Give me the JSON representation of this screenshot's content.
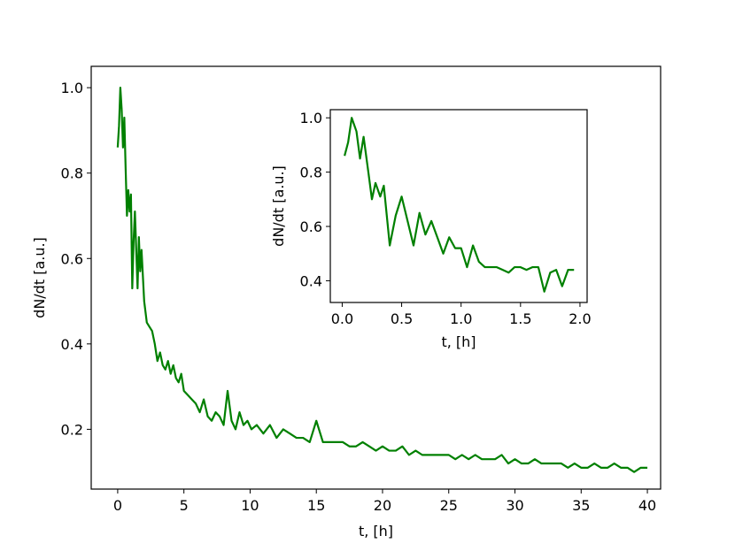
{
  "chart_data": [
    {
      "type": "line",
      "xlabel": "t, [h]",
      "ylabel": "dN/dt [a.u.]",
      "xlim": [
        -2,
        41
      ],
      "ylim": [
        0.06,
        1.05
      ],
      "xticks": [
        0,
        5,
        10,
        15,
        20,
        25,
        30,
        35,
        40
      ],
      "xtick_labels": [
        "0",
        "5",
        "10",
        "15",
        "20",
        "25",
        "30",
        "35",
        "40"
      ],
      "yticks": [
        0.2,
        0.4,
        0.6,
        0.8,
        1.0
      ],
      "ytick_labels": [
        "0.2",
        "0.4",
        "0.6",
        "0.8",
        "1.0"
      ],
      "grid": false,
      "color": "#008000",
      "series": [
        {
          "x": [
            0.0,
            0.1,
            0.2,
            0.3,
            0.4,
            0.5,
            0.6,
            0.7,
            0.8,
            0.9,
            1.0,
            1.1,
            1.2,
            1.3,
            1.4,
            1.5,
            1.6,
            1.7,
            1.8,
            1.9,
            2.0,
            2.2,
            2.4,
            2.6,
            2.8,
            3.0,
            3.2,
            3.4,
            3.6,
            3.8,
            4.0,
            4.2,
            4.4,
            4.6,
            4.8,
            5.0,
            5.3,
            5.6,
            5.9,
            6.2,
            6.5,
            6.8,
            7.1,
            7.4,
            7.7,
            8.0,
            8.3,
            8.6,
            8.9,
            9.2,
            9.5,
            9.8,
            10.1,
            10.5,
            11.0,
            11.5,
            12.0,
            12.5,
            13.0,
            13.5,
            14.0,
            14.5,
            15.0,
            15.5,
            16.0,
            16.5,
            17.0,
            17.5,
            18.0,
            18.5,
            19.0,
            19.5,
            20.0,
            20.5,
            21.0,
            21.5,
            22.0,
            22.5,
            23.0,
            23.5,
            24.0,
            24.5,
            25.0,
            25.5,
            26.0,
            26.5,
            27.0,
            27.5,
            28.0,
            28.5,
            29.0,
            29.5,
            30.0,
            30.5,
            31.0,
            31.5,
            32.0,
            32.5,
            33.0,
            33.5,
            34.0,
            34.5,
            35.0,
            35.5,
            36.0,
            36.5,
            37.0,
            37.5,
            38.0,
            38.5,
            39.0,
            39.5,
            40.0
          ],
          "values": [
            0.86,
            0.91,
            1.0,
            0.95,
            0.86,
            0.93,
            0.81,
            0.7,
            0.76,
            0.71,
            0.75,
            0.53,
            0.64,
            0.71,
            0.62,
            0.53,
            0.65,
            0.57,
            0.62,
            0.56,
            0.5,
            0.45,
            0.44,
            0.43,
            0.4,
            0.36,
            0.38,
            0.35,
            0.34,
            0.36,
            0.33,
            0.35,
            0.32,
            0.31,
            0.33,
            0.29,
            0.28,
            0.27,
            0.26,
            0.24,
            0.27,
            0.23,
            0.22,
            0.24,
            0.23,
            0.21,
            0.29,
            0.22,
            0.2,
            0.24,
            0.21,
            0.22,
            0.2,
            0.21,
            0.19,
            0.21,
            0.18,
            0.2,
            0.19,
            0.18,
            0.18,
            0.17,
            0.22,
            0.17,
            0.17,
            0.17,
            0.17,
            0.16,
            0.16,
            0.17,
            0.16,
            0.15,
            0.16,
            0.15,
            0.15,
            0.16,
            0.14,
            0.15,
            0.14,
            0.14,
            0.14,
            0.14,
            0.14,
            0.13,
            0.14,
            0.13,
            0.14,
            0.13,
            0.13,
            0.13,
            0.14,
            0.12,
            0.13,
            0.12,
            0.12,
            0.13,
            0.12,
            0.12,
            0.12,
            0.12,
            0.11,
            0.12,
            0.11,
            0.11,
            0.12,
            0.11,
            0.11,
            0.12,
            0.11,
            0.11,
            0.1,
            0.11,
            0.11
          ]
        }
      ]
    },
    {
      "type": "line",
      "xlabel": "t, [h]",
      "ylabel": "dN/dt [a.u.]",
      "xlim": [
        -0.1,
        2.06
      ],
      "ylim": [
        0.32,
        1.03
      ],
      "xticks": [
        0.0,
        0.5,
        1.0,
        1.5,
        2.0
      ],
      "xtick_labels": [
        "0.0",
        "0.5",
        "1.0",
        "1.5",
        "2.0"
      ],
      "yticks": [
        0.4,
        0.6,
        0.8,
        1.0
      ],
      "ytick_labels": [
        "0.4",
        "0.6",
        "0.8",
        "1.0"
      ],
      "grid": false,
      "color": "#008000",
      "series": [
        {
          "x": [
            0.02,
            0.05,
            0.08,
            0.12,
            0.15,
            0.18,
            0.22,
            0.25,
            0.28,
            0.32,
            0.35,
            0.4,
            0.45,
            0.5,
            0.55,
            0.6,
            0.65,
            0.7,
            0.75,
            0.8,
            0.85,
            0.9,
            0.95,
            1.0,
            1.05,
            1.1,
            1.15,
            1.2,
            1.25,
            1.3,
            1.35,
            1.4,
            1.45,
            1.5,
            1.55,
            1.6,
            1.65,
            1.7,
            1.75,
            1.8,
            1.85,
            1.9,
            1.95
          ],
          "values": [
            0.86,
            0.91,
            1.0,
            0.95,
            0.85,
            0.93,
            0.8,
            0.7,
            0.76,
            0.71,
            0.75,
            0.53,
            0.64,
            0.71,
            0.62,
            0.53,
            0.65,
            0.57,
            0.62,
            0.56,
            0.5,
            0.56,
            0.52,
            0.52,
            0.45,
            0.53,
            0.47,
            0.45,
            0.45,
            0.45,
            0.44,
            0.43,
            0.45,
            0.45,
            0.44,
            0.45,
            0.45,
            0.36,
            0.43,
            0.44,
            0.38,
            0.44,
            0.44
          ]
        }
      ]
    }
  ]
}
